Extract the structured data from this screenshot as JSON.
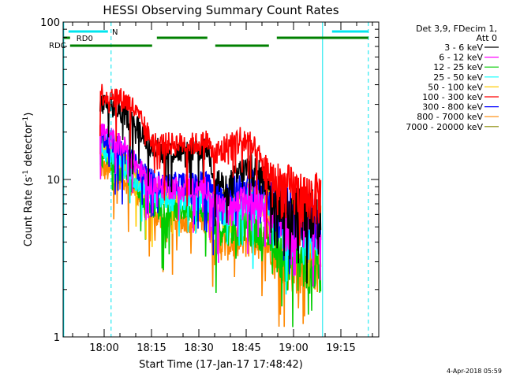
{
  "chart_data": {
    "type": "line",
    "title": "HESSI Observing Summary Count Rates",
    "xlabel": "Start Time (17-Jan-17 17:48:42)",
    "ylabel_main": "Count Rate (s",
    "ylabel_sup1": "-1",
    "ylabel_mid": " detector",
    "ylabel_sup2": "-1",
    "ylabel_end": ")",
    "y_scale": "log",
    "ylim": [
      1,
      100
    ],
    "y_ticks": [
      {
        "value": 1,
        "label": "1"
      },
      {
        "value": 10,
        "label": "10"
      },
      {
        "value": 100,
        "label": "100"
      }
    ],
    "x_axis_unit": "minutes after 17:48:42",
    "xlim": [
      -1.7,
      98.3
    ],
    "x_ticks": [
      {
        "value": 11.3,
        "label": "18:00"
      },
      {
        "value": 26.3,
        "label": "18:15"
      },
      {
        "value": 41.3,
        "label": "18:30"
      },
      {
        "value": 56.3,
        "label": "18:45"
      },
      {
        "value": 71.3,
        "label": "19:00"
      },
      {
        "value": 86.3,
        "label": "19:15"
      }
    ],
    "legend_title_1": "Det 3,9, FDecim 1,",
    "legend_title_2": "Att 0",
    "legend_placement": "right",
    "series": [
      {
        "name": "3 - 6 keV",
        "color": "#000000",
        "points": [
          [
            10,
            30
          ],
          [
            14,
            29
          ],
          [
            18,
            26
          ],
          [
            22,
            22
          ],
          [
            26,
            17
          ],
          [
            30,
            15
          ],
          [
            36,
            15
          ],
          [
            40,
            15
          ],
          [
            44,
            16
          ],
          [
            46,
            11
          ],
          [
            50,
            8.5
          ],
          [
            54,
            11
          ],
          [
            58,
            12
          ],
          [
            62,
            10
          ],
          [
            66,
            8
          ],
          [
            70,
            7
          ],
          [
            74,
            6.5
          ],
          [
            78,
            6.5
          ],
          [
            80,
            6.5
          ]
        ]
      },
      {
        "name": "6 - 12 keV",
        "color": "#ff00ff",
        "points": [
          [
            10,
            21
          ],
          [
            14,
            18
          ],
          [
            18,
            16
          ],
          [
            22,
            12
          ],
          [
            26,
            9.5
          ],
          [
            30,
            9
          ],
          [
            36,
            9
          ],
          [
            40,
            9
          ],
          [
            44,
            9
          ],
          [
            46,
            7
          ],
          [
            50,
            6.5
          ],
          [
            54,
            7
          ],
          [
            58,
            8
          ],
          [
            62,
            7
          ],
          [
            66,
            6
          ],
          [
            70,
            5.5
          ],
          [
            74,
            5.5
          ],
          [
            78,
            5.5
          ],
          [
            80,
            5.5
          ]
        ]
      },
      {
        "name": "12 - 25 keV",
        "color": "#00cc00",
        "points": [
          [
            10,
            15
          ],
          [
            14,
            13
          ],
          [
            18,
            11
          ],
          [
            22,
            8.5
          ],
          [
            26,
            7
          ],
          [
            30,
            6.5
          ],
          [
            36,
            6.5
          ],
          [
            40,
            6.5
          ],
          [
            44,
            6.5
          ],
          [
            46,
            5
          ],
          [
            50,
            5
          ],
          [
            54,
            5
          ],
          [
            58,
            5
          ],
          [
            62,
            4.5
          ],
          [
            66,
            4
          ],
          [
            70,
            3
          ],
          [
            74,
            3
          ],
          [
            78,
            3
          ],
          [
            80,
            3
          ]
        ]
      },
      {
        "name": "25 - 50 keV",
        "color": "#00ffff",
        "points": [
          [
            10,
            16
          ],
          [
            14,
            14
          ],
          [
            18,
            12
          ],
          [
            22,
            10
          ],
          [
            26,
            8
          ],
          [
            30,
            7.5
          ],
          [
            36,
            7.5
          ],
          [
            40,
            7.5
          ],
          [
            44,
            7.5
          ],
          [
            46,
            6.5
          ],
          [
            50,
            6.5
          ],
          [
            54,
            7
          ],
          [
            58,
            7.5
          ],
          [
            62,
            7
          ],
          [
            66,
            6
          ],
          [
            70,
            5
          ],
          [
            74,
            5
          ],
          [
            78,
            5
          ],
          [
            80,
            5
          ]
        ]
      },
      {
        "name": "50 - 100 keV",
        "color": "#ffcc00",
        "points": [
          [
            10,
            17
          ],
          [
            14,
            15
          ],
          [
            18,
            13
          ],
          [
            22,
            10.5
          ],
          [
            26,
            9
          ],
          [
            30,
            8.5
          ],
          [
            36,
            8.5
          ],
          [
            40,
            8.5
          ],
          [
            44,
            8.5
          ],
          [
            46,
            7
          ],
          [
            50,
            7
          ],
          [
            54,
            7.5
          ],
          [
            58,
            8
          ],
          [
            62,
            7.5
          ],
          [
            66,
            6.5
          ],
          [
            70,
            5.5
          ],
          [
            74,
            5.5
          ],
          [
            78,
            5.5
          ],
          [
            80,
            5.5
          ]
        ]
      },
      {
        "name": "100 - 300 keV",
        "color": "#ff0000",
        "points": [
          [
            10,
            36
          ],
          [
            12,
            34
          ],
          [
            14,
            35
          ],
          [
            16,
            33
          ],
          [
            18,
            32
          ],
          [
            20,
            30
          ],
          [
            22,
            25
          ],
          [
            24,
            22
          ],
          [
            26,
            18
          ],
          [
            28,
            17
          ],
          [
            30,
            17
          ],
          [
            34,
            17
          ],
          [
            38,
            17
          ],
          [
            42,
            17
          ],
          [
            44,
            18
          ],
          [
            46,
            14
          ],
          [
            48,
            15
          ],
          [
            50,
            16
          ],
          [
            52,
            17
          ],
          [
            54,
            18
          ],
          [
            56,
            18
          ],
          [
            58,
            16
          ],
          [
            60,
            14
          ],
          [
            62,
            12
          ],
          [
            64,
            11
          ],
          [
            66,
            9.5
          ],
          [
            68,
            9
          ],
          [
            70,
            9
          ],
          [
            72,
            8.5
          ],
          [
            74,
            8
          ],
          [
            76,
            8
          ],
          [
            78,
            8
          ],
          [
            80,
            8
          ]
        ]
      },
      {
        "name": "300 - 800 keV",
        "color": "#0000ff",
        "points": [
          [
            10,
            19
          ],
          [
            14,
            17
          ],
          [
            18,
            15
          ],
          [
            22,
            12
          ],
          [
            26,
            10
          ],
          [
            30,
            9.5
          ],
          [
            36,
            9.5
          ],
          [
            40,
            9.5
          ],
          [
            44,
            10
          ],
          [
            46,
            8
          ],
          [
            50,
            8.5
          ],
          [
            54,
            9
          ],
          [
            58,
            9.5
          ],
          [
            62,
            8.5
          ],
          [
            66,
            7.5
          ],
          [
            70,
            6.5
          ],
          [
            74,
            6
          ],
          [
            78,
            6
          ],
          [
            80,
            6
          ]
        ]
      },
      {
        "name": "800 - 7000 keV",
        "color": "#ff8800",
        "points": [
          [
            10,
            12
          ],
          [
            14,
            11
          ],
          [
            18,
            10
          ],
          [
            22,
            8
          ],
          [
            26,
            6
          ],
          [
            30,
            5.5
          ],
          [
            36,
            5.5
          ],
          [
            40,
            5.5
          ],
          [
            44,
            5.5
          ],
          [
            46,
            4
          ],
          [
            50,
            4
          ],
          [
            54,
            4
          ],
          [
            58,
            4.2
          ],
          [
            62,
            4
          ],
          [
            66,
            3.5
          ],
          [
            70,
            3
          ],
          [
            74,
            3
          ],
          [
            78,
            3
          ],
          [
            80,
            3
          ]
        ]
      },
      {
        "name": "7000 - 20000 keV",
        "color": "#888800",
        "points": []
      }
    ],
    "top_bars": [
      {
        "label": "N",
        "color": "#00e5ee",
        "segments": [
          [
            0,
            12.5
          ],
          [
            83.5,
            95
          ]
        ]
      },
      {
        "label": "RD0",
        "color": "#008000",
        "segments": [
          [
            -1.5,
            0.5
          ],
          [
            28,
            44
          ],
          [
            66,
            95
          ]
        ]
      },
      {
        "label": "RDC",
        "color": "#008000",
        "segments": [
          [
            0.5,
            26.5
          ],
          [
            46.5,
            63.5
          ]
        ]
      }
    ],
    "vlines": [
      {
        "x": 13.5,
        "color": "#00e5ee",
        "style": "dashed"
      },
      {
        "x": 80.5,
        "color": "#00e5ee",
        "style": "solid"
      },
      {
        "x": 95,
        "color": "#00e5ee",
        "style": "dashed"
      },
      {
        "x": -1.5,
        "color": "#00e5ee",
        "style": "solid"
      }
    ]
  },
  "footer_date": "4-Apr-2018 05:59"
}
